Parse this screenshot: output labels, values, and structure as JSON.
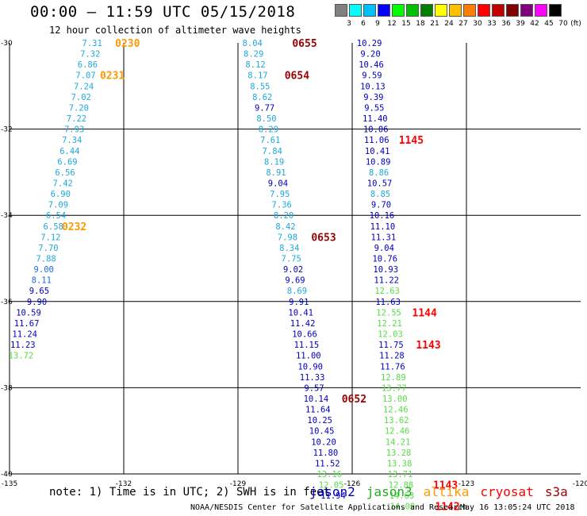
{
  "title": "00:00 — 11:59 UTC 05/15/2018",
  "subtitle": "12 hour collection of altimeter wave heights",
  "colorbar": {
    "unit": "(ft)",
    "colors": [
      "#808080",
      "#00ffff",
      "#00bfff",
      "#0000ff",
      "#00ff00",
      "#00c000",
      "#008000",
      "#ffff00",
      "#ffc000",
      "#ff8000",
      "#ff0000",
      "#c00000",
      "#800000",
      "#800080",
      "#ff00ff",
      "#000000"
    ],
    "labels": [
      "3",
      "6",
      "9",
      "12",
      "15",
      "18",
      "21",
      "24",
      "27",
      "30",
      "33",
      "36",
      "39",
      "42",
      "45",
      "70"
    ]
  },
  "axes": {
    "x_ticks": [
      "-135",
      "-132",
      "-129",
      "-126",
      "-123",
      "-120"
    ],
    "y_ticks": [
      "-30",
      "-32",
      "-34",
      "-36",
      "-38",
      "-40"
    ]
  },
  "satellite_colors": {
    "jason2": "#0000bb",
    "jason3": "#22aa22",
    "altika": "#ff9900",
    "cryosat": "#ff0000",
    "s3a": "#990000"
  },
  "wave_labels": [
    {
      "v": "7.31",
      "lon": -132.83,
      "lat": -30.0,
      "c": "c"
    },
    {
      "v": "7.32",
      "lon": -132.88,
      "lat": -30.25,
      "c": "c"
    },
    {
      "v": "6.86",
      "lon": -132.95,
      "lat": -30.5,
      "c": "c"
    },
    {
      "v": "7.07",
      "lon": -133.0,
      "lat": -30.75,
      "c": "c"
    },
    {
      "v": "7.24",
      "lon": -133.05,
      "lat": -31.0,
      "c": "c"
    },
    {
      "v": "7.02",
      "lon": -133.12,
      "lat": -31.25,
      "c": "c"
    },
    {
      "v": "7.20",
      "lon": -133.18,
      "lat": -31.5,
      "c": "c"
    },
    {
      "v": "7.22",
      "lon": -133.24,
      "lat": -31.75,
      "c": "c"
    },
    {
      "v": "7.93",
      "lon": -133.3,
      "lat": -32.0,
      "c": "c"
    },
    {
      "v": "7.34",
      "lon": -133.36,
      "lat": -32.25,
      "c": "c"
    },
    {
      "v": "6.44",
      "lon": -133.42,
      "lat": -32.5,
      "c": "c"
    },
    {
      "v": "6.69",
      "lon": -133.48,
      "lat": -32.75,
      "c": "c"
    },
    {
      "v": "6.56",
      "lon": -133.54,
      "lat": -33.0,
      "c": "c"
    },
    {
      "v": "7.42",
      "lon": -133.6,
      "lat": -33.25,
      "c": "c"
    },
    {
      "v": "6.90",
      "lon": -133.66,
      "lat": -33.5,
      "c": "c"
    },
    {
      "v": "7.09",
      "lon": -133.72,
      "lat": -33.75,
      "c": "c"
    },
    {
      "v": "6.54",
      "lon": -133.78,
      "lat": -34.0,
      "c": "c"
    },
    {
      "v": "6.58",
      "lon": -133.85,
      "lat": -34.25,
      "c": "c"
    },
    {
      "v": "7.12",
      "lon": -133.92,
      "lat": -34.5,
      "c": "c"
    },
    {
      "v": "7.70",
      "lon": -133.98,
      "lat": -34.75,
      "c": "c"
    },
    {
      "v": "7.88",
      "lon": -134.04,
      "lat": -35.0,
      "c": "c"
    },
    {
      "v": "9.00",
      "lon": -134.1,
      "lat": -35.25,
      "c": "b"
    },
    {
      "v": "8.11",
      "lon": -134.16,
      "lat": -35.5,
      "c": "b"
    },
    {
      "v": "9.65",
      "lon": -134.22,
      "lat": -35.75,
      "c": "d"
    },
    {
      "v": "9.90",
      "lon": -134.28,
      "lat": -36.0,
      "c": "d"
    },
    {
      "v": "10.59",
      "lon": -134.5,
      "lat": -36.25,
      "c": "d"
    },
    {
      "v": "11.67",
      "lon": -134.55,
      "lat": -36.5,
      "c": "d"
    },
    {
      "v": "11.24",
      "lon": -134.6,
      "lat": -36.75,
      "c": "d"
    },
    {
      "v": "11.23",
      "lon": -134.65,
      "lat": -37.0,
      "c": "d"
    },
    {
      "v": "13.72",
      "lon": -134.7,
      "lat": -37.25,
      "c": "g"
    },
    {
      "v": "8.04",
      "lon": -128.62,
      "lat": -30.0,
      "c": "c"
    },
    {
      "v": "8.29",
      "lon": -128.59,
      "lat": -30.25,
      "c": "c"
    },
    {
      "v": "8.12",
      "lon": -128.54,
      "lat": -30.5,
      "c": "c"
    },
    {
      "v": "8.17",
      "lon": -128.48,
      "lat": -30.75,
      "c": "c"
    },
    {
      "v": "8.55",
      "lon": -128.42,
      "lat": -31.0,
      "c": "c"
    },
    {
      "v": "8.62",
      "lon": -128.36,
      "lat": -31.25,
      "c": "c"
    },
    {
      "v": "9.77",
      "lon": -128.3,
      "lat": -31.5,
      "c": "d"
    },
    {
      "v": "8.50",
      "lon": -128.25,
      "lat": -31.75,
      "c": "c"
    },
    {
      "v": "8.29",
      "lon": -128.2,
      "lat": -32.0,
      "c": "c"
    },
    {
      "v": "7.61",
      "lon": -128.15,
      "lat": -32.25,
      "c": "c"
    },
    {
      "v": "7.84",
      "lon": -128.1,
      "lat": -32.5,
      "c": "c"
    },
    {
      "v": "8.19",
      "lon": -128.05,
      "lat": -32.75,
      "c": "c"
    },
    {
      "v": "8.91",
      "lon": -128.0,
      "lat": -33.0,
      "c": "c"
    },
    {
      "v": "9.04",
      "lon": -127.95,
      "lat": -33.25,
      "c": "d"
    },
    {
      "v": "7.95",
      "lon": -127.9,
      "lat": -33.5,
      "c": "c"
    },
    {
      "v": "7.36",
      "lon": -127.85,
      "lat": -33.75,
      "c": "c"
    },
    {
      "v": "8.20",
      "lon": -127.8,
      "lat": -34.0,
      "c": "c"
    },
    {
      "v": "8.42",
      "lon": -127.75,
      "lat": -34.25,
      "c": "c"
    },
    {
      "v": "7.98",
      "lon": -127.7,
      "lat": -34.5,
      "c": "c"
    },
    {
      "v": "8.34",
      "lon": -127.65,
      "lat": -34.75,
      "c": "c"
    },
    {
      "v": "7.75",
      "lon": -127.6,
      "lat": -35.0,
      "c": "c"
    },
    {
      "v": "9.02",
      "lon": -127.55,
      "lat": -35.25,
      "c": "d"
    },
    {
      "v": "9.69",
      "lon": -127.5,
      "lat": -35.5,
      "c": "d"
    },
    {
      "v": "8.69",
      "lon": -127.45,
      "lat": -35.75,
      "c": "c"
    },
    {
      "v": "9.91",
      "lon": -127.4,
      "lat": -36.0,
      "c": "d"
    },
    {
      "v": "10.41",
      "lon": -127.35,
      "lat": -36.25,
      "c": "d"
    },
    {
      "v": "11.42",
      "lon": -127.3,
      "lat": -36.5,
      "c": "d"
    },
    {
      "v": "10.66",
      "lon": -127.25,
      "lat": -36.75,
      "c": "d"
    },
    {
      "v": "11.15",
      "lon": -127.2,
      "lat": -37.0,
      "c": "d"
    },
    {
      "v": "11.00",
      "lon": -127.15,
      "lat": -37.25,
      "c": "d"
    },
    {
      "v": "10.90",
      "lon": -127.1,
      "lat": -37.5,
      "c": "d"
    },
    {
      "v": "11.33",
      "lon": -127.05,
      "lat": -37.75,
      "c": "d"
    },
    {
      "v": "9.57",
      "lon": -127.0,
      "lat": -38.0,
      "c": "d"
    },
    {
      "v": "10.14",
      "lon": -126.95,
      "lat": -38.25,
      "c": "d"
    },
    {
      "v": "11.64",
      "lon": -126.9,
      "lat": -38.5,
      "c": "d"
    },
    {
      "v": "10.25",
      "lon": -126.85,
      "lat": -38.75,
      "c": "d"
    },
    {
      "v": "10.45",
      "lon": -126.8,
      "lat": -39.0,
      "c": "d"
    },
    {
      "v": "10.20",
      "lon": -126.75,
      "lat": -39.25,
      "c": "d"
    },
    {
      "v": "11.80",
      "lon": -126.7,
      "lat": -39.5,
      "c": "d"
    },
    {
      "v": "11.52",
      "lon": -126.65,
      "lat": -39.75,
      "c": "d"
    },
    {
      "v": "13.16",
      "lon": -126.6,
      "lat": -40.0,
      "c": "g"
    },
    {
      "v": "12.05",
      "lon": -126.55,
      "lat": -40.25,
      "c": "g"
    },
    {
      "v": "11.94",
      "lon": -126.5,
      "lat": -40.5,
      "c": "d"
    },
    {
      "v": "10.29",
      "lon": -125.55,
      "lat": -30.0,
      "c": "d"
    },
    {
      "v": "9.20",
      "lon": -125.52,
      "lat": -30.25,
      "c": "d"
    },
    {
      "v": "10.46",
      "lon": -125.5,
      "lat": -30.5,
      "c": "d"
    },
    {
      "v": "9.59",
      "lon": -125.48,
      "lat": -30.75,
      "c": "d"
    },
    {
      "v": "10.13",
      "lon": -125.46,
      "lat": -31.0,
      "c": "d"
    },
    {
      "v": "9.39",
      "lon": -125.44,
      "lat": -31.25,
      "c": "d"
    },
    {
      "v": "9.55",
      "lon": -125.42,
      "lat": -31.5,
      "c": "d"
    },
    {
      "v": "11.40",
      "lon": -125.4,
      "lat": -31.75,
      "c": "d"
    },
    {
      "v": "10.06",
      "lon": -125.38,
      "lat": -32.0,
      "c": "d"
    },
    {
      "v": "11.06",
      "lon": -125.36,
      "lat": -32.25,
      "c": "d"
    },
    {
      "v": "10.41",
      "lon": -125.34,
      "lat": -32.5,
      "c": "d"
    },
    {
      "v": "10.89",
      "lon": -125.32,
      "lat": -32.75,
      "c": "d"
    },
    {
      "v": "8.86",
      "lon": -125.3,
      "lat": -33.0,
      "c": "c"
    },
    {
      "v": "10.57",
      "lon": -125.28,
      "lat": -33.25,
      "c": "d"
    },
    {
      "v": "8.85",
      "lon": -125.26,
      "lat": -33.5,
      "c": "c"
    },
    {
      "v": "9.70",
      "lon": -125.24,
      "lat": -33.75,
      "c": "d"
    },
    {
      "v": "10.16",
      "lon": -125.22,
      "lat": -34.0,
      "c": "d"
    },
    {
      "v": "11.10",
      "lon": -125.2,
      "lat": -34.25,
      "c": "d"
    },
    {
      "v": "11.31",
      "lon": -125.18,
      "lat": -34.5,
      "c": "d"
    },
    {
      "v": "9.04",
      "lon": -125.16,
      "lat": -34.75,
      "c": "d"
    },
    {
      "v": "10.76",
      "lon": -125.14,
      "lat": -35.0,
      "c": "d"
    },
    {
      "v": "10.93",
      "lon": -125.12,
      "lat": -35.25,
      "c": "d"
    },
    {
      "v": "11.22",
      "lon": -125.1,
      "lat": -35.5,
      "c": "d"
    },
    {
      "v": "12.63",
      "lon": -125.08,
      "lat": -35.75,
      "c": "g"
    },
    {
      "v": "11.63",
      "lon": -125.06,
      "lat": -36.0,
      "c": "d"
    },
    {
      "v": "12.55",
      "lon": -125.04,
      "lat": -36.25,
      "c": "g"
    },
    {
      "v": "12.21",
      "lon": -125.02,
      "lat": -36.5,
      "c": "g"
    },
    {
      "v": "12.03",
      "lon": -125.0,
      "lat": -36.75,
      "c": "g"
    },
    {
      "v": "11.75",
      "lon": -124.98,
      "lat": -37.0,
      "c": "d"
    },
    {
      "v": "11.28",
      "lon": -124.96,
      "lat": -37.25,
      "c": "d"
    },
    {
      "v": "11.76",
      "lon": -124.94,
      "lat": -37.5,
      "c": "d"
    },
    {
      "v": "12.89",
      "lon": -124.92,
      "lat": -37.75,
      "c": "g"
    },
    {
      "v": "13.77",
      "lon": -124.9,
      "lat": -38.0,
      "c": "g"
    },
    {
      "v": "13.00",
      "lon": -124.88,
      "lat": -38.25,
      "c": "g"
    },
    {
      "v": "12.46",
      "lon": -124.86,
      "lat": -38.5,
      "c": "g"
    },
    {
      "v": "13.62",
      "lon": -124.84,
      "lat": -38.75,
      "c": "g"
    },
    {
      "v": "12.46",
      "lon": -124.82,
      "lat": -39.0,
      "c": "g"
    },
    {
      "v": "14.21",
      "lon": -124.8,
      "lat": -39.25,
      "c": "g"
    },
    {
      "v": "13.28",
      "lon": -124.78,
      "lat": -39.5,
      "c": "g"
    },
    {
      "v": "13.38",
      "lon": -124.76,
      "lat": -39.75,
      "c": "g"
    },
    {
      "v": "13.71",
      "lon": -124.74,
      "lat": -40.0,
      "c": "g"
    },
    {
      "v": "12.88",
      "lon": -124.72,
      "lat": -40.25,
      "c": "g"
    },
    {
      "v": "14.63",
      "lon": -124.7,
      "lat": -40.5,
      "c": "g"
    },
    {
      "v": "14.09",
      "lon": -124.68,
      "lat": -40.75,
      "c": "g"
    }
  ],
  "time_labels": [
    {
      "t": "0230",
      "lon": -131.9,
      "lat": -30.0,
      "c": "altika"
    },
    {
      "t": "0231",
      "lon": -132.3,
      "lat": -30.75,
      "c": "altika"
    },
    {
      "t": "0232",
      "lon": -133.3,
      "lat": -34.25,
      "c": "altika"
    },
    {
      "t": "0655",
      "lon": -127.25,
      "lat": -30.0,
      "c": "s3a"
    },
    {
      "t": "0654",
      "lon": -127.45,
      "lat": -30.75,
      "c": "s3a"
    },
    {
      "t": "0653",
      "lon": -126.75,
      "lat": -34.5,
      "c": "s3a"
    },
    {
      "t": "0652",
      "lon": -125.95,
      "lat": -38.25,
      "c": "s3a"
    },
    {
      "t": "1145",
      "lon": -124.45,
      "lat": -32.25,
      "c": "cryosat"
    },
    {
      "t": "1144",
      "lon": -124.1,
      "lat": -36.25,
      "c": "cryosat"
    },
    {
      "t": "1143",
      "lon": -124.0,
      "lat": -37.0,
      "c": "cryosat"
    },
    {
      "t": "1143",
      "lon": -123.55,
      "lat": -40.25,
      "c": "cryosat"
    },
    {
      "t": "1142",
      "lon": -123.5,
      "lat": -40.75,
      "c": "cryosat"
    }
  ],
  "note": "note: 1) Time is in UTC; 2) SWH is in feet",
  "legend": [
    {
      "name": "jason2",
      "c": "jason2"
    },
    {
      "name": "jason3",
      "c": "jason3"
    },
    {
      "name": "altika",
      "c": "altika"
    },
    {
      "name": "cryosat",
      "c": "cryosat"
    },
    {
      "name": "s3a",
      "c": "s3a"
    }
  ],
  "credit": "NOAA/NESDIS Center for Satellite Applications and Research",
  "timestamp": "May 16 13:05:24 UTC 2018"
}
